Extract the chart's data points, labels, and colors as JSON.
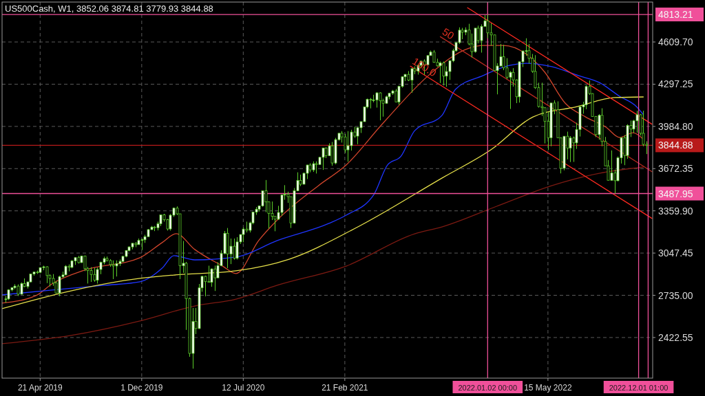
{
  "chart_data": {
    "type": "candlestick",
    "title": "US500Cash, W1, 3852.06 3874.81 3779.93 3844.88",
    "color": "#5ccf2a",
    "grid": true,
    "xlim": [
      "2019-01-27",
      "2023-01-01"
    ],
    "xticks": [
      {
        "value": "2019-04-21",
        "label": "21 Apr 2019"
      },
      {
        "value": "2019-12-01",
        "label": "1 Dec 2019"
      },
      {
        "value": "2020-07-12",
        "label": "12 Jul 2020"
      },
      {
        "value": "2021-02-21",
        "label": "21 Feb 2021"
      },
      {
        "value": "2022-05-15",
        "label": "15 May 2022"
      }
    ],
    "ylim": [
      2122,
      4905
    ],
    "yticks": [
      2422.55,
      {
        "value": 2735,
        "label": "2735.00"
      },
      3047.45,
      {
        "value": 3359.9,
        "label": "3359.90"
      },
      3672.35,
      {
        "value": 3984.8,
        "label": "3984.80"
      },
      4297.25,
      {
        "value": 4609.7,
        "label": "4609.70"
      }
    ],
    "x": [
      "2019-02-03",
      "2019-02-10",
      "2019-02-17",
      "2019-02-24",
      "2019-03-03",
      "2019-03-10",
      "2019-03-17",
      "2019-03-24",
      "2019-03-31",
      "2019-04-07",
      "2019-04-14",
      "2019-04-21",
      "2019-04-28",
      "2019-05-05",
      "2019-05-12",
      "2019-05-19",
      "2019-05-26",
      "2019-06-02",
      "2019-06-09",
      "2019-06-16",
      "2019-06-23",
      "2019-06-30",
      "2019-07-07",
      "2019-07-14",
      "2019-07-21",
      "2019-07-28",
      "2019-08-04",
      "2019-08-11",
      "2019-08-18",
      "2019-08-25",
      "2019-09-01",
      "2019-09-08",
      "2019-09-15",
      "2019-09-22",
      "2019-09-29",
      "2019-10-06",
      "2019-10-13",
      "2019-10-20",
      "2019-10-27",
      "2019-11-03",
      "2019-11-10",
      "2019-11-17",
      "2019-11-24",
      "2019-12-01",
      "2019-12-08",
      "2019-12-15",
      "2019-12-22",
      "2019-12-29",
      "2020-01-05",
      "2020-01-12",
      "2020-01-19",
      "2020-01-26",
      "2020-02-02",
      "2020-02-09",
      "2020-02-16",
      "2020-02-23",
      "2020-03-01",
      "2020-03-08",
      "2020-03-15",
      "2020-03-22",
      "2020-03-29",
      "2020-04-05",
      "2020-04-12",
      "2020-04-19",
      "2020-04-26",
      "2020-05-03",
      "2020-05-10",
      "2020-05-17",
      "2020-05-24",
      "2020-05-31",
      "2020-06-07",
      "2020-06-14",
      "2020-06-21",
      "2020-06-28",
      "2020-07-05",
      "2020-07-12",
      "2020-07-19",
      "2020-07-26",
      "2020-08-02",
      "2020-08-09",
      "2020-08-16",
      "2020-08-23",
      "2020-08-30",
      "2020-09-06",
      "2020-09-13",
      "2020-09-20",
      "2020-09-27",
      "2020-10-04",
      "2020-10-11",
      "2020-10-18",
      "2020-10-25",
      "2020-11-01",
      "2020-11-08",
      "2020-11-15",
      "2020-11-22",
      "2020-11-29",
      "2020-12-06",
      "2020-12-13",
      "2020-12-20",
      "2020-12-27",
      "2021-01-03",
      "2021-01-10",
      "2021-01-17",
      "2021-01-24",
      "2021-01-31",
      "2021-02-07",
      "2021-02-14",
      "2021-02-21",
      "2021-02-28",
      "2021-03-07",
      "2021-03-14",
      "2021-03-21",
      "2021-03-28",
      "2021-04-04",
      "2021-04-11",
      "2021-04-18",
      "2021-04-25",
      "2021-05-02",
      "2021-05-09",
      "2021-05-16",
      "2021-05-23",
      "2021-05-30",
      "2021-06-06",
      "2021-06-13",
      "2021-06-20",
      "2021-06-27",
      "2021-07-04",
      "2021-07-11",
      "2021-07-18",
      "2021-07-25",
      "2021-08-01",
      "2021-08-08",
      "2021-08-15",
      "2021-08-22",
      "2021-08-29",
      "2021-09-05",
      "2021-09-12",
      "2021-09-19",
      "2021-09-26",
      "2021-10-03",
      "2021-10-10",
      "2021-10-17",
      "2021-10-24",
      "2021-10-31",
      "2021-11-07",
      "2021-11-14",
      "2021-11-21",
      "2021-11-28",
      "2021-12-05",
      "2021-12-12",
      "2021-12-19",
      "2021-12-26",
      "2022-01-02",
      "2022-01-09",
      "2022-01-16",
      "2022-01-23",
      "2022-01-30",
      "2022-02-06",
      "2022-02-13",
      "2022-02-20",
      "2022-02-27",
      "2022-03-06",
      "2022-03-13",
      "2022-03-20",
      "2022-03-27",
      "2022-04-03",
      "2022-04-10",
      "2022-04-17",
      "2022-04-24",
      "2022-05-01",
      "2022-05-08",
      "2022-05-15",
      "2022-05-22",
      "2022-05-29",
      "2022-06-05",
      "2022-06-12",
      "2022-06-19",
      "2022-06-26",
      "2022-07-03",
      "2022-07-10",
      "2022-07-17",
      "2022-07-24",
      "2022-07-31",
      "2022-08-07",
      "2022-08-14",
      "2022-08-21",
      "2022-08-28",
      "2022-09-04",
      "2022-09-11",
      "2022-09-18",
      "2022-09-25",
      "2022-10-02",
      "2022-10-09",
      "2022-10-16",
      "2022-10-23",
      "2022-10-30",
      "2022-11-06",
      "2022-11-13",
      "2022-11-20",
      "2022-11-27",
      "2022-12-04",
      "2022-12-11",
      "2022-12-18"
    ],
    "ohlc": [
      [
        2705,
        2730,
        2681,
        2708
      ],
      [
        2708,
        2780,
        2700,
        2775
      ],
      [
        2775,
        2795,
        2764,
        2792
      ],
      [
        2792,
        2817,
        2780,
        2803
      ],
      [
        2803,
        2816,
        2730,
        2743
      ],
      [
        2743,
        2830,
        2741,
        2822
      ],
      [
        2822,
        2860,
        2795,
        2800
      ],
      [
        2800,
        2836,
        2785,
        2834
      ],
      [
        2834,
        2895,
        2830,
        2893
      ],
      [
        2893,
        2910,
        2880,
        2907
      ],
      [
        2907,
        2918,
        2893,
        2905
      ],
      [
        2905,
        2943,
        2898,
        2940
      ],
      [
        2940,
        2954,
        2920,
        2946
      ],
      [
        2946,
        2950,
        2825,
        2881
      ],
      [
        2881,
        2890,
        2800,
        2860
      ],
      [
        2860,
        2892,
        2805,
        2826
      ],
      [
        2826,
        2841,
        2750,
        2752
      ],
      [
        2752,
        2880,
        2728,
        2873
      ],
      [
        2873,
        2910,
        2863,
        2886
      ],
      [
        2886,
        2958,
        2883,
        2950
      ],
      [
        2950,
        2964,
        2912,
        2942
      ],
      [
        2942,
        2996,
        2935,
        2990
      ],
      [
        2990,
        3017,
        2960,
        3014
      ],
      [
        3014,
        3027,
        2970,
        2977
      ],
      [
        2977,
        3028,
        2975,
        3026
      ],
      [
        3026,
        3029,
        2914,
        2932
      ],
      [
        2932,
        2945,
        2822,
        2919
      ],
      [
        2919,
        2943,
        2834,
        2889
      ],
      [
        2889,
        2939,
        2835,
        2847
      ],
      [
        2847,
        2940,
        2822,
        2926
      ],
      [
        2926,
        2985,
        2891,
        2979
      ],
      [
        2979,
        3021,
        2964,
        3007
      ],
      [
        3007,
        3022,
        2985,
        2992
      ],
      [
        2992,
        3002,
        2946,
        2962
      ],
      [
        2962,
        2993,
        2855,
        2952
      ],
      [
        2952,
        2993,
        2874,
        2970
      ],
      [
        2970,
        3000,
        2952,
        2986
      ],
      [
        2986,
        3028,
        2980,
        3023
      ],
      [
        3023,
        3068,
        3016,
        3067
      ],
      [
        3067,
        3098,
        3060,
        3093
      ],
      [
        3093,
        3121,
        3075,
        3120
      ],
      [
        3120,
        3128,
        3091,
        3110
      ],
      [
        3110,
        3155,
        3109,
        3141
      ],
      [
        3141,
        3154,
        3070,
        3146
      ],
      [
        3146,
        3183,
        3123,
        3169
      ],
      [
        3169,
        3226,
        3169,
        3221
      ],
      [
        3221,
        3248,
        3220,
        3240
      ],
      [
        3240,
        3248,
        3210,
        3235
      ],
      [
        3235,
        3280,
        3215,
        3265
      ],
      [
        3265,
        3330,
        3247,
        3330
      ],
      [
        3330,
        3338,
        3280,
        3295
      ],
      [
        3295,
        3300,
        3214,
        3226
      ],
      [
        3226,
        3337,
        3214,
        3328
      ],
      [
        3328,
        3385,
        3315,
        3380
      ],
      [
        3380,
        3393,
        3328,
        3338
      ],
      [
        3338,
        3338,
        2855,
        2954
      ],
      [
        2954,
        3137,
        2901,
        2972
      ],
      [
        2972,
        2982,
        2479,
        2711
      ],
      [
        2711,
        2718,
        2280,
        2305
      ],
      [
        2305,
        2641,
        2192,
        2541
      ],
      [
        2541,
        2641,
        2448,
        2489
      ],
      [
        2489,
        2819,
        2486,
        2790
      ],
      [
        2790,
        2880,
        2761,
        2875
      ],
      [
        2875,
        2880,
        2727,
        2837
      ],
      [
        2837,
        2954,
        2830,
        2831
      ],
      [
        2831,
        2934,
        2798,
        2930
      ],
      [
        2930,
        2955,
        2767,
        2864
      ],
      [
        2864,
        2980,
        2864,
        2955
      ],
      [
        2955,
        3068,
        2950,
        3044
      ],
      [
        3044,
        3211,
        3039,
        3194
      ],
      [
        3194,
        3233,
        2936,
        3041
      ],
      [
        3041,
        3155,
        2966,
        3098
      ],
      [
        3098,
        3155,
        2999,
        3009
      ],
      [
        3009,
        3165,
        3000,
        3130
      ],
      [
        3130,
        3185,
        3115,
        3185
      ],
      [
        3185,
        3238,
        3127,
        3225
      ],
      [
        3225,
        3280,
        3200,
        3216
      ],
      [
        3216,
        3280,
        3200,
        3271
      ],
      [
        3271,
        3352,
        3260,
        3351
      ],
      [
        3351,
        3388,
        3330,
        3372
      ],
      [
        3372,
        3400,
        3355,
        3397
      ],
      [
        3397,
        3510,
        3390,
        3508
      ],
      [
        3508,
        3588,
        3350,
        3426
      ],
      [
        3426,
        3430,
        3229,
        3341
      ],
      [
        3341,
        3429,
        3292,
        3319
      ],
      [
        3319,
        3320,
        3209,
        3298
      ],
      [
        3298,
        3397,
        3292,
        3348
      ],
      [
        3348,
        3482,
        3323,
        3477
      ],
      [
        3477,
        3550,
        3442,
        3483
      ],
      [
        3483,
        3502,
        3419,
        3465
      ],
      [
        3465,
        3465,
        3233,
        3270
      ],
      [
        3270,
        3529,
        3265,
        3509
      ],
      [
        3509,
        3645,
        3505,
        3585
      ],
      [
        3585,
        3628,
        3543,
        3557
      ],
      [
        3557,
        3644,
        3555,
        3638
      ],
      [
        3638,
        3701,
        3595,
        3699
      ],
      [
        3699,
        3712,
        3645,
        3663
      ],
      [
        3663,
        3726,
        3648,
        3709
      ],
      [
        3709,
        3726,
        3636,
        3703
      ],
      [
        3703,
        3760,
        3700,
        3756
      ],
      [
        3756,
        3827,
        3663,
        3825
      ],
      [
        3825,
        3830,
        3750,
        3768
      ],
      [
        3768,
        3860,
        3765,
        3841
      ],
      [
        3841,
        3870,
        3694,
        3714
      ],
      [
        3714,
        3900,
        3704,
        3887
      ],
      [
        3887,
        3937,
        3880,
        3934
      ],
      [
        3934,
        3950,
        3865,
        3907
      ],
      [
        3907,
        3930,
        3789,
        3811
      ],
      [
        3811,
        3950,
        3723,
        3842
      ],
      [
        3842,
        3960,
        3806,
        3943
      ],
      [
        3943,
        3983,
        3900,
        3913
      ],
      [
        3913,
        3980,
        3853,
        3975
      ],
      [
        3975,
        4021,
        3936,
        4020
      ],
      [
        4020,
        4131,
        4020,
        4129
      ],
      [
        4129,
        4191,
        4119,
        4185
      ],
      [
        4185,
        4195,
        4118,
        4180
      ],
      [
        4180,
        4219,
        4163,
        4181
      ],
      [
        4181,
        4238,
        4124,
        4233
      ],
      [
        4233,
        4238,
        4030,
        4174
      ],
      [
        4174,
        4190,
        4057,
        4156
      ],
      [
        4156,
        4213,
        4152,
        4204
      ],
      [
        4204,
        4234,
        4185,
        4230
      ],
      [
        4230,
        4255,
        4218,
        4247
      ],
      [
        4247,
        4262,
        4165,
        4166
      ],
      [
        4166,
        4287,
        4145,
        4281
      ],
      [
        4281,
        4356,
        4272,
        4352
      ],
      [
        4352,
        4372,
        4320,
        4370
      ],
      [
        4370,
        4394,
        4320,
        4327
      ],
      [
        4327,
        4415,
        4234,
        4412
      ],
      [
        4412,
        4429,
        4371,
        4395
      ],
      [
        4395,
        4442,
        4368,
        4437
      ],
      [
        4437,
        4470,
        4414,
        4468
      ],
      [
        4468,
        4481,
        4367,
        4441
      ],
      [
        4441,
        4513,
        4440,
        4509
      ],
      [
        4509,
        4546,
        4509,
        4535
      ],
      [
        4535,
        4550,
        4456,
        4459
      ],
      [
        4459,
        4486,
        4427,
        4433
      ],
      [
        4433,
        4465,
        4306,
        4455
      ],
      [
        4455,
        4465,
        4288,
        4357
      ],
      [
        4357,
        4429,
        4278,
        4391
      ],
      [
        4391,
        4475,
        4329,
        4471
      ],
      [
        4471,
        4560,
        4460,
        4545
      ],
      [
        4545,
        4608,
        4537,
        4605
      ],
      [
        4605,
        4718,
        4595,
        4697
      ],
      [
        4697,
        4714,
        4630,
        4682
      ],
      [
        4682,
        4718,
        4660,
        4698
      ],
      [
        4698,
        4744,
        4585,
        4595
      ],
      [
        4595,
        4672,
        4495,
        4538
      ],
      [
        4538,
        4713,
        4530,
        4712
      ],
      [
        4712,
        4731,
        4600,
        4620
      ],
      [
        4620,
        4740,
        4531,
        4725
      ],
      [
        4725,
        4808,
        4725,
        4766
      ],
      [
        4766,
        4813.21,
        4637,
        4677
      ],
      [
        4677,
        4749,
        4582,
        4662
      ],
      [
        4662,
        4664,
        4395,
        4398
      ],
      [
        4398,
        4453,
        4222,
        4432
      ],
      [
        4432,
        4595,
        4430,
        4500
      ],
      [
        4500,
        4589,
        4401,
        4418
      ],
      [
        4418,
        4490,
        4335,
        4349
      ],
      [
        4349,
        4394,
        4114,
        4385
      ],
      [
        4385,
        4416,
        4279,
        4329
      ],
      [
        4329,
        4333,
        4157,
        4204
      ],
      [
        4204,
        4465,
        4161,
        4463
      ],
      [
        4463,
        4546,
        4424,
        4543
      ],
      [
        4543,
        4637,
        4507,
        4545
      ],
      [
        4545,
        4595,
        4450,
        4488
      ],
      [
        4488,
        4521,
        4381,
        4392
      ],
      [
        4392,
        4512,
        4262,
        4271
      ],
      [
        4271,
        4308,
        4124,
        4132
      ],
      [
        4132,
        4308,
        4062,
        4123
      ],
      [
        4123,
        4127,
        3859,
        4023
      ],
      [
        4023,
        4091,
        3810,
        3901
      ],
      [
        3901,
        4158,
        3838,
        4158
      ],
      [
        4158,
        4178,
        4075,
        4108
      ],
      [
        4108,
        4170,
        3900,
        3901
      ],
      [
        3901,
        3901,
        3637,
        3675
      ],
      [
        3675,
        3913,
        3660,
        3912
      ],
      [
        3912,
        3946,
        3741,
        3825
      ],
      [
        3825,
        3913,
        3721,
        3899
      ],
      [
        3899,
        3910,
        3722,
        3863
      ],
      [
        3863,
        4012,
        3818,
        3962
      ],
      [
        3962,
        4140,
        3910,
        4130
      ],
      [
        4130,
        4167,
        4079,
        4145
      ],
      [
        4145,
        4290,
        4112,
        4280
      ],
      [
        4280,
        4325,
        4218,
        4228
      ],
      [
        4228,
        4230,
        4057,
        4058
      ],
      [
        4058,
        4062,
        3906,
        3924
      ],
      [
        3924,
        4076,
        3886,
        4067
      ],
      [
        4067,
        4119,
        3838,
        3873
      ],
      [
        3873,
        3907,
        3692,
        3693
      ],
      [
        3693,
        3736,
        3585,
        3586
      ],
      [
        3586,
        3807,
        3584,
        3640
      ],
      [
        3640,
        3665,
        3488,
        3583
      ],
      [
        3583,
        3762,
        3578,
        3752
      ],
      [
        3752,
        3905,
        3710,
        3901
      ],
      [
        3901,
        3920,
        3698,
        3770
      ],
      [
        3770,
        4001,
        3745,
        3992
      ],
      [
        3992,
        4028,
        3906,
        3965
      ],
      [
        3965,
        4034,
        3937,
        4026
      ],
      [
        4026,
        4100,
        3939,
        4071
      ],
      [
        4071,
        4077,
        3918,
        3934
      ],
      [
        3934,
        4101,
        3838,
        3852
      ],
      [
        3852.06,
        3874.81,
        3779.93,
        3844.88
      ]
    ],
    "series": [
      {
        "type": "line",
        "color": "#d0452c",
        "x": [
          "2019-01-27",
          "2019-04-12",
          "2019-05-17",
          "2019-07-28",
          "2019-11-27",
          "2020-01-15",
          "2020-02-15",
          "2020-03-27",
          "2020-05-27",
          "2020-06-26",
          "2020-08-15",
          "2020-09-25",
          "2020-12-25",
          "2021-02-24",
          "2021-05-11",
          "2021-05-26",
          "2021-08-24",
          "2021-11-22",
          "2021-12-22",
          "2022-02-06",
          "2022-03-31",
          "2022-05-08",
          "2022-06-22",
          "2022-08-06",
          "2022-09-20",
          "2022-10-20",
          "2022-11-19",
          "2022-12-12"
        ],
        "values": [
          2677,
          2733,
          2819,
          2921,
          3013,
          3125,
          3191,
          3074,
          2952,
          2896,
          3140,
          3292,
          3547,
          3699,
          3989,
          4045,
          4360,
          4564,
          4584,
          4584,
          4513,
          4386,
          4157,
          4055,
          3979,
          3903,
          3938,
          3888
        ]
      },
      {
        "type": "line",
        "color": "#1f35ff",
        "x": [
          "2019-01-27",
          "2019-05-17",
          "2019-09-11",
          "2019-11-27",
          "2020-01-15",
          "2020-02-10",
          "2020-03-27",
          "2020-06-26",
          "2020-09-25",
          "2021-01-17",
          "2021-02-24",
          "2021-04-26",
          "2021-05-26",
          "2021-06-25",
          "2021-07-25",
          "2021-09-23",
          "2021-10-23",
          "2021-12-22",
          "2022-02-21",
          "2022-03-31",
          "2022-05-23",
          "2022-07-22",
          "2022-09-05",
          "2022-10-20",
          "2022-11-26",
          "2022-12-12"
        ],
        "values": [
          2738,
          2774,
          2809,
          2835,
          2936,
          3028,
          2997,
          3018,
          3140,
          3267,
          3328,
          3480,
          3699,
          3765,
          3953,
          4065,
          4259,
          4360,
          4437,
          4452,
          4427,
          4360,
          4310,
          4208,
          4132,
          4070
        ]
      },
      {
        "type": "line",
        "color": "#e6e04a",
        "x": [
          "2019-01-27",
          "2019-06-28",
          "2019-11-27",
          "2020-02-10",
          "2020-06-26",
          "2020-10-21",
          "2021-03-16",
          "2021-09-23",
          "2022-01-11",
          "2022-04-12",
          "2022-07-18",
          "2022-10-09",
          "2022-12-12"
        ],
        "values": [
          2636,
          2768,
          2860,
          2885,
          2916,
          3002,
          3231,
          3602,
          3816,
          4055,
          4131,
          4198,
          4203
        ]
      },
      {
        "type": "line",
        "color": "#7c1a12",
        "x": [
          "2019-01-27",
          "2019-06-28",
          "2019-11-27",
          "2020-03-27",
          "2020-06-26",
          "2020-09-25",
          "2021-02-24",
          "2021-07-25",
          "2021-09-23",
          "2022-01-22",
          "2022-05-23",
          "2022-09-05",
          "2022-12-12"
        ],
        "values": [
          2377,
          2438,
          2545,
          2656,
          2707,
          2809,
          2951,
          3190,
          3241,
          3394,
          3546,
          3638,
          3684
        ]
      },
      {
        "type": "line",
        "color": "#ff2a20",
        "x": [
          "2021-11-18",
          "2022-12-31"
        ],
        "values": [
          4864,
          4000
        ]
      },
      {
        "type": "line",
        "color": "#b82a20",
        "x": [
          "2021-09-19",
          "2022-12-31"
        ],
        "values": [
          4650,
          3648
        ]
      },
      {
        "type": "line",
        "color": "#ff2a20",
        "x": [
          "2021-07-15",
          "2022-12-31"
        ],
        "values": [
          4432,
          3303
        ]
      }
    ],
    "ref_lines": [
      {
        "axis": "y",
        "value": 4813.21,
        "label": "4813.21",
        "color": "#f0509a"
      },
      {
        "axis": "y",
        "value": 3844.88,
        "label": "3844.88",
        "color": "#b81a1a"
      },
      {
        "axis": "y",
        "value": 3487.95,
        "label": "3487.95",
        "color": "#f0509a"
      },
      {
        "axis": "x",
        "value": "2022-01-02",
        "label": "2022.01.02 00:00",
        "color": "#f0509a"
      },
      {
        "axis": "x",
        "value": "2022-12-01",
        "label": "2022.12.01 01:00",
        "color": "#f0509a"
      },
      {
        "axis": "x",
        "value": "2022-12-22",
        "color": "#f0509a"
      }
    ],
    "annotations": [
      "50",
      "100.0"
    ]
  }
}
